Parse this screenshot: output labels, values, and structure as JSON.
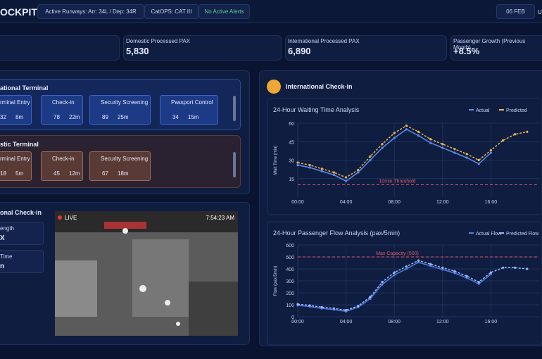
{
  "header": {
    "title": "OCKPIT",
    "runways": "Active Runways: Arr: 34L / Dep: 34R",
    "catops": "CatOPS: CAT III",
    "alerts": "No Active Alerts",
    "date": "06 FEB",
    "user": "U"
  },
  "kpis": [
    {
      "label": "Domestic Processed PAX",
      "value": "5,830"
    },
    {
      "label": "International Processed PAX",
      "value": "6,890"
    },
    {
      "label": "Passenger Growth (Previous Month)",
      "value": "+8.5%"
    }
  ],
  "terminals": [
    {
      "title": "ational Terminal",
      "steps": [
        {
          "name": "rminal Entry",
          "count": "32",
          "time": "8m"
        },
        {
          "name": "Check-in",
          "count": "78",
          "time": "22m"
        },
        {
          "name": "Security Screening",
          "count": "89",
          "time": "25m"
        },
        {
          "name": "Passport Control",
          "count": "34",
          "time": "15m"
        }
      ]
    },
    {
      "title": "stic Terminal",
      "steps": [
        {
          "name": "rminal Entry",
          "count": "18",
          "time": "5m"
        },
        {
          "name": "Check-in",
          "count": "45",
          "time": "12m"
        },
        {
          "name": "Security Screening",
          "count": "67",
          "time": "18m"
        }
      ]
    }
  ],
  "camera_panel": {
    "title": "onal Check-in",
    "stats": [
      {
        "label": "ength",
        "value": "X"
      },
      {
        "label": "Time",
        "value": "n"
      }
    ],
    "live": "LIVE",
    "time": "7:54:23 AM"
  },
  "checkin_panel": {
    "title": "International Check-in"
  },
  "charts": [
    {
      "type": "line",
      "title": "24-Hour Waiting Time Analysis",
      "y_label": "Wait Time (min)",
      "x": [
        0,
        1,
        2,
        3,
        4,
        5,
        6,
        7,
        8,
        9,
        10,
        11,
        12,
        13,
        14,
        15,
        16,
        17,
        18,
        19
      ],
      "xlim": [
        0,
        20
      ],
      "xticks": [
        {
          "value": 0,
          "label": "00:00"
        },
        {
          "value": 4,
          "label": "04:00"
        },
        {
          "value": 8,
          "label": "08:00"
        },
        {
          "value": 12,
          "label": "12:00"
        },
        {
          "value": 16,
          "label": "16:00"
        }
      ],
      "ylim": [
        0,
        60
      ],
      "yticks": [
        15,
        30,
        45,
        60
      ],
      "grid": true,
      "threshold": {
        "value": 10,
        "label": "10min Threshold"
      },
      "series": [
        {
          "name": "Actual",
          "color": "#5b8def",
          "values": [
            26,
            24,
            21,
            18,
            13,
            20,
            30,
            40,
            48,
            55,
            50,
            44,
            40,
            36,
            32,
            27,
            36,
            null,
            null,
            null
          ]
        },
        {
          "name": "Predicted",
          "color": "#f0b44a",
          "values": [
            28,
            26,
            23,
            20,
            16,
            22,
            33,
            43,
            52,
            58,
            53,
            47,
            43,
            39,
            35,
            30,
            38,
            46,
            51,
            53
          ]
        }
      ]
    },
    {
      "type": "line",
      "title": "24-Hour Passenger Flow Analysis (pax/5min)",
      "y_label": "Flow (pax/5min)",
      "x": [
        0,
        1,
        2,
        3,
        4,
        5,
        6,
        7,
        8,
        9,
        10,
        11,
        12,
        13,
        14,
        15,
        16,
        17,
        18,
        19
      ],
      "xlim": [
        0,
        20
      ],
      "xticks": [
        {
          "value": 0,
          "label": "00:00"
        },
        {
          "value": 4,
          "label": "04:00"
        },
        {
          "value": 8,
          "label": "08:00"
        },
        {
          "value": 12,
          "label": "12:00"
        },
        {
          "value": 16,
          "label": "16:00"
        }
      ],
      "ylim": [
        0,
        600
      ],
      "yticks": [
        0,
        100,
        200,
        300,
        400,
        500,
        600
      ],
      "grid": true,
      "threshold": {
        "value": 500,
        "label": "Max Capacity (500)"
      },
      "series": [
        {
          "name": "Actual Flow",
          "color": "#4f7fe0",
          "values": [
            95,
            85,
            70,
            60,
            45,
            80,
            150,
            270,
            350,
            400,
            455,
            425,
            395,
            365,
            325,
            275,
            355,
            null,
            null,
            null
          ]
        },
        {
          "name": "Predicted Flow",
          "color": "#9bb8ff",
          "values": [
            105,
            95,
            80,
            70,
            55,
            90,
            165,
            290,
            370,
            420,
            470,
            440,
            410,
            380,
            340,
            290,
            370,
            410,
            410,
            400
          ]
        }
      ]
    }
  ]
}
